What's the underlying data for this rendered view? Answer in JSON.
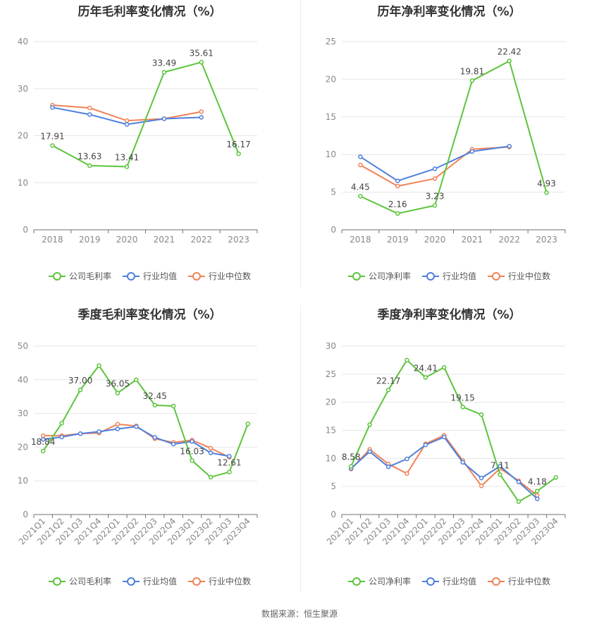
{
  "source": "数据来源：恒生聚源",
  "colors": {
    "company": "#5cc43c",
    "avg": "#4e7fde",
    "median": "#f08257"
  },
  "chart_data": [
    {
      "type": "line",
      "title": "历年毛利率变化情况（%）",
      "categories": [
        "2018",
        "2019",
        "2020",
        "2021",
        "2022",
        "2023"
      ],
      "ylim": [
        0,
        40
      ],
      "yticks": [
        0,
        10,
        20,
        30,
        40
      ],
      "legend": [
        "公司毛利率",
        "行业均值",
        "行业中位数"
      ],
      "legend_position": "bottom",
      "series": [
        {
          "name": "公司毛利率",
          "values": [
            17.91,
            13.63,
            13.41,
            33.49,
            35.61,
            16.17
          ],
          "labels": [
            "17.91",
            "13.63",
            "13.41",
            "33.49",
            "35.61",
            "16.17"
          ]
        },
        {
          "name": "行业均值",
          "values": [
            26.0,
            24.5,
            22.4,
            23.6,
            23.9,
            null
          ]
        },
        {
          "name": "行业中位数",
          "values": [
            26.5,
            25.9,
            23.2,
            23.6,
            25.1,
            null
          ]
        }
      ]
    },
    {
      "type": "line",
      "title": "历年净利率变化情况（%）",
      "categories": [
        "2018",
        "2019",
        "2020",
        "2021",
        "2022",
        "2023"
      ],
      "ylim": [
        0,
        25
      ],
      "yticks": [
        0,
        5,
        10,
        15,
        20,
        25
      ],
      "legend": [
        "公司净利率",
        "行业均值",
        "行业中位数"
      ],
      "legend_position": "bottom",
      "series": [
        {
          "name": "公司净利率",
          "values": [
            4.45,
            2.16,
            3.23,
            19.81,
            22.42,
            4.93
          ],
          "labels": [
            "4.45",
            "2.16",
            "3.23",
            "19.81",
            "22.42",
            "4.93"
          ]
        },
        {
          "name": "行业均值",
          "values": [
            9.7,
            6.5,
            8.1,
            10.4,
            11.1,
            null
          ]
        },
        {
          "name": "行业中位数",
          "values": [
            8.6,
            5.8,
            6.8,
            10.7,
            11.0,
            null
          ]
        }
      ]
    },
    {
      "type": "line",
      "title": "季度毛利率变化情况（%）",
      "categories": [
        "2021Q1",
        "2021Q2",
        "2021Q3",
        "2021Q4",
        "2022Q1",
        "2022Q2",
        "2022Q3",
        "2022Q4",
        "2023Q1",
        "2023Q2",
        "2023Q3",
        "2023Q4"
      ],
      "ylim": [
        0,
        50
      ],
      "yticks": [
        0,
        10,
        20,
        30,
        40,
        50
      ],
      "legend": [
        "公司毛利率",
        "行业均值",
        "行业中位数"
      ],
      "legend_position": "bottom",
      "series": [
        {
          "name": "公司毛利率",
          "values": [
            18.84,
            27.1,
            37.0,
            44.2,
            36.05,
            40.0,
            32.45,
            32.2,
            16.03,
            11.1,
            12.61,
            26.9
          ],
          "labels": [
            "18.84",
            null,
            "37.00",
            null,
            "36.05",
            null,
            "32.45",
            null,
            "16.03",
            null,
            "12.61",
            null
          ]
        },
        {
          "name": "行业均值",
          "values": [
            22.3,
            23.0,
            24.0,
            24.6,
            25.4,
            26.1,
            22.9,
            20.9,
            21.7,
            18.3,
            17.3,
            null
          ]
        },
        {
          "name": "行业中位数",
          "values": [
            23.4,
            23.4,
            24.0,
            24.2,
            26.8,
            26.3,
            22.5,
            21.4,
            22.1,
            19.7,
            17.0,
            null
          ]
        }
      ]
    },
    {
      "type": "line",
      "title": "季度净利率变化情况（%）",
      "categories": [
        "2021Q1",
        "2021Q2",
        "2021Q3",
        "2021Q4",
        "2022Q1",
        "2022Q2",
        "2022Q3",
        "2022Q4",
        "2023Q1",
        "2023Q2",
        "2023Q3",
        "2023Q4"
      ],
      "ylim": [
        0,
        30
      ],
      "yticks": [
        0,
        5,
        10,
        15,
        20,
        25,
        30
      ],
      "legend": [
        "公司净利率",
        "行业均值",
        "行业中位数"
      ],
      "legend_position": "bottom",
      "series": [
        {
          "name": "公司净利率",
          "values": [
            8.58,
            16.0,
            22.17,
            27.5,
            24.41,
            26.2,
            19.15,
            17.8,
            7.11,
            2.3,
            4.18,
            6.6
          ],
          "labels": [
            "8.58",
            null,
            "22.17",
            null,
            "24.41",
            null,
            "19.15",
            null,
            "7.11",
            null,
            "4.18",
            null
          ]
        },
        {
          "name": "行业均值",
          "values": [
            8.2,
            11.2,
            8.5,
            9.9,
            12.4,
            13.8,
            9.3,
            6.5,
            8.6,
            5.8,
            2.8,
            null
          ]
        },
        {
          "name": "行业中位数",
          "values": [
            8.1,
            11.6,
            9.0,
            7.3,
            12.6,
            14.1,
            9.6,
            5.1,
            8.2,
            6.0,
            3.4,
            null
          ]
        }
      ]
    }
  ]
}
